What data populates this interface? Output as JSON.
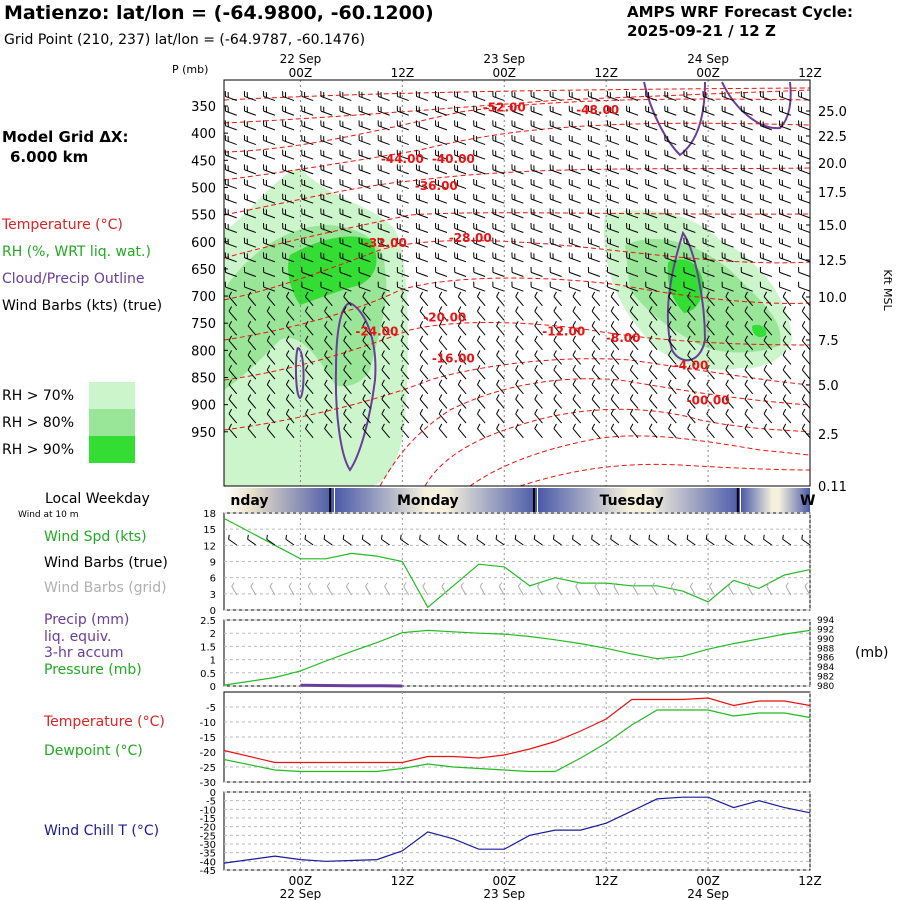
{
  "header": {
    "title": "Matienzo:  lat/lon = (-64.9800, -60.1200)",
    "subtitle": "Grid Point (210, 237) lat/lon = (-64.9787, -60.1476)",
    "cycle_line1": "AMPS WRF Forecast Cycle:",
    "cycle_line2": "2025-09-21 / 12  Z"
  },
  "left": {
    "grid_line1": "Model Grid ΔX:",
    "grid_line2": "6.000 km",
    "legend": [
      {
        "text": "Temperature (°C)",
        "color": "#dd2222"
      },
      {
        "text": "RH (%, WRT liq. wat.)",
        "color": "#22aa22"
      },
      {
        "text": "Cloud/Precip Outline",
        "color": "#6a3d9a"
      },
      {
        "text": "Wind Barbs (kts) (true)",
        "color": "#000000"
      }
    ],
    "rh_legend": [
      {
        "text": "RH > 70%",
        "color": "#ccf5cc"
      },
      {
        "text": "RH > 80%",
        "color": "#99e699"
      },
      {
        "text": "RH > 90%",
        "color": "#33dd33"
      }
    ]
  },
  "colors": {
    "temperature": "#ee1111",
    "dewpoint": "#22bb22",
    "rh_70": "#ccf5cc",
    "rh_80": "#99e699",
    "rh_90": "#33dd33",
    "cloud_outline": "#6a3d9a",
    "wind_speed": "#22bb22",
    "precip": "#6a3d9a",
    "pressure": "#22bb22",
    "wind_chill": "#1a1aa0",
    "weekday_band": "#4a5aa8"
  },
  "time_axis": {
    "ticks_top": [
      {
        "hour": 0,
        "label": "00Z",
        "date": "22 Sep"
      },
      {
        "hour": 12,
        "label": "12Z",
        "date": ""
      },
      {
        "hour": 24,
        "label": "00Z",
        "date": "23 Sep"
      },
      {
        "hour": 36,
        "label": "12Z",
        "date": ""
      },
      {
        "hour": 48,
        "label": "00Z",
        "date": "24 Sep"
      },
      {
        "hour": 60,
        "label": "12Z",
        "date": ""
      }
    ],
    "ticks_bottom": [
      {
        "hour": 0,
        "label": "00Z",
        "date": "22 Sep"
      },
      {
        "hour": 12,
        "label": "12Z",
        "date": ""
      },
      {
        "hour": 24,
        "label": "00Z",
        "date": "23 Sep"
      },
      {
        "hour": 36,
        "label": "12Z",
        "date": ""
      },
      {
        "hour": 48,
        "label": "00Z",
        "date": "24 Sep"
      },
      {
        "hour": 60,
        "label": "12Z",
        "date": ""
      }
    ]
  },
  "weekday_band": {
    "label": "Local Weekday",
    "sublabel": "Wind at 10 m",
    "days": [
      {
        "name": "nday",
        "center_hour": -6
      },
      {
        "name": "Monday",
        "center_hour": 15
      },
      {
        "name": "Tuesday",
        "center_hour": 39
      },
      {
        "name": "W",
        "center_hour": 61.5
      }
    ],
    "divider_hours": [
      3.5,
      27.5,
      51.5
    ]
  },
  "chart_data": [
    {
      "type": "heatmap",
      "name": "Vertical cross-section",
      "ylabel_left": "P (mb)",
      "ylabel_right": "Kft MSL",
      "x_range_hours": [
        -9,
        60
      ],
      "y_pressure_ticks": [
        350,
        400,
        450,
        500,
        550,
        600,
        650,
        700,
        750,
        800,
        850,
        900,
        950
      ],
      "y_height_ticks": [
        "25.0",
        "22.5",
        "20.0",
        "17.5",
        "15.0",
        "12.5",
        "10.0",
        "7.5",
        "5.0",
        "2.5",
        "0.11"
      ],
      "temperature_labels": [
        {
          "text": "-52.00",
          "hour": 24,
          "p": 360
        },
        {
          "text": "-48.00",
          "hour": 35,
          "p": 365
        },
        {
          "text": "-44.00",
          "hour": 12,
          "p": 455
        },
        {
          "text": "-40.00",
          "hour": 18,
          "p": 455
        },
        {
          "text": "-36.00",
          "hour": 16,
          "p": 505
        },
        {
          "text": "-32.00",
          "hour": 10,
          "p": 610
        },
        {
          "text": "-28.00",
          "hour": 20,
          "p": 600
        },
        {
          "text": "-24.00",
          "hour": 9,
          "p": 773
        },
        {
          "text": "-20.00",
          "hour": 17,
          "p": 747
        },
        {
          "text": "-16.00",
          "hour": 18,
          "p": 822
        },
        {
          "text": "-12.00",
          "hour": 31,
          "p": 773
        },
        {
          "text": "-8.00",
          "hour": 38,
          "p": 785
        },
        {
          "text": "-4.00",
          "hour": 46,
          "p": 835
        },
        {
          "text": "-00.00",
          "hour": 48,
          "p": 900
        }
      ],
      "rh_legend": [
        "RH > 70%",
        "RH > 80%",
        "RH > 90%"
      ]
    },
    {
      "type": "line",
      "name": "Wind speed",
      "ylabel": "Wind Spd (kts)",
      "ylim": [
        0,
        18
      ],
      "yticks": [
        0,
        3,
        6,
        9,
        12,
        15,
        18
      ],
      "series": [
        {
          "name": "Wind Spd (kts)",
          "x": [
            -9,
            -3,
            0,
            3,
            6,
            9,
            12,
            15,
            18,
            21,
            24,
            27,
            30,
            33,
            36,
            39,
            42,
            45,
            48,
            51,
            54,
            57,
            60
          ],
          "values": [
            17,
            12,
            9.5,
            9.5,
            10.5,
            10,
            9,
            0.5,
            4.5,
            8.5,
            8,
            4.5,
            6,
            5,
            5,
            4.5,
            4.5,
            3.5,
            1.5,
            5.5,
            4,
            6.5,
            7.5
          ]
        }
      ]
    },
    {
      "type": "line",
      "name": "Precip and pressure",
      "ylabel": "Precip (mm)",
      "ylim": [
        0,
        2.5
      ],
      "yticks": [
        0.0,
        0.5,
        1.0,
        1.5,
        2.0,
        2.5
      ],
      "y2lim": [
        980,
        994
      ],
      "y2ticks": [
        980,
        982,
        984,
        986,
        988,
        990,
        992,
        994
      ],
      "series": [
        {
          "name": "Pressure (mb)",
          "axis": "y2",
          "x": [
            -9,
            -3,
            0,
            3,
            6,
            9,
            12,
            15,
            18,
            21,
            24,
            27,
            30,
            33,
            36,
            39,
            42,
            45,
            48,
            51,
            54,
            57,
            60
          ],
          "values": [
            980.2,
            981.8,
            983.2,
            985.3,
            987.3,
            989.2,
            991.3,
            991.8,
            991.5,
            991.2,
            991.0,
            990.5,
            989.8,
            989.0,
            988.0,
            986.8,
            985.8,
            986.3,
            987.8,
            989.0,
            990.0,
            991.0,
            991.8
          ]
        },
        {
          "name": "Precip (mm)",
          "axis": "y",
          "x": [
            0,
            3,
            6,
            9,
            12
          ],
          "values": [
            0.03,
            0.02,
            0.01,
            0.01,
            0.0
          ]
        }
      ]
    },
    {
      "type": "line",
      "name": "Temperature and dewpoint",
      "ylim": [
        -30,
        0
      ],
      "yticks": [
        -5,
        -10,
        -15,
        -20,
        -25,
        -30
      ],
      "series": [
        {
          "name": "Temperature (°C)",
          "x": [
            -9,
            -3,
            0,
            3,
            6,
            9,
            12,
            15,
            18,
            21,
            24,
            27,
            30,
            33,
            36,
            39,
            42,
            45,
            48,
            51,
            54,
            57,
            60
          ],
          "values": [
            -19.5,
            -23.5,
            -23.5,
            -23.5,
            -23.5,
            -23.5,
            -23.5,
            -21.5,
            -21.5,
            -22,
            -21,
            -19,
            -16.5,
            -13,
            -9,
            -2.5,
            -2.5,
            -2.5,
            -2,
            -4.5,
            -3,
            -3,
            -4.5
          ]
        },
        {
          "name": "Dewpoint (°C)",
          "x": [
            -9,
            -3,
            0,
            3,
            6,
            9,
            12,
            15,
            18,
            21,
            24,
            27,
            30,
            33,
            36,
            39,
            42,
            45,
            48,
            51,
            54,
            57,
            60
          ],
          "values": [
            -22.5,
            -26,
            -26.5,
            -26.5,
            -26.5,
            -26.5,
            -25.5,
            -24,
            -25,
            -25.5,
            -26,
            -26.5,
            -26.5,
            -22,
            -17,
            -11,
            -6,
            -6,
            -6,
            -8,
            -7,
            -7,
            -8.5
          ]
        }
      ]
    },
    {
      "type": "line",
      "name": "Wind chill",
      "ylabel": "Wind Chill T (°C)",
      "ylim": [
        -45,
        0
      ],
      "yticks": [
        0,
        -5,
        -10,
        -15,
        -20,
        -25,
        -30,
        -35,
        -40,
        -45
      ],
      "series": [
        {
          "name": "Wind Chill T (°C)",
          "x": [
            -9,
            -3,
            0,
            3,
            6,
            9,
            12,
            15,
            18,
            21,
            24,
            27,
            30,
            33,
            36,
            39,
            42,
            45,
            48,
            51,
            54,
            57,
            60
          ],
          "values": [
            -41,
            -37,
            -39,
            -40,
            -39.5,
            -39,
            -34,
            -23,
            -27,
            -33,
            -33,
            -25,
            -22,
            -22,
            -18,
            -11,
            -4,
            -3,
            -3,
            -9,
            -5,
            -9,
            -12
          ]
        }
      ]
    }
  ],
  "panel_labels": {
    "wind": [
      {
        "text": "Wind Spd (kts)",
        "color": "#22aa22"
      },
      {
        "text": "Wind Barbs (true)",
        "color": "#000000"
      },
      {
        "text": "Wind Barbs (grid)",
        "color": "#b0b0b0"
      }
    ],
    "precip": [
      {
        "text": "Precip (mm)",
        "color": "#6a3d9a"
      },
      {
        "text": "liq. equiv.",
        "color": "#6a3d9a"
      },
      {
        "text": "3-hr accum",
        "color": "#6a3d9a"
      },
      {
        "text": "Pressure (mb)",
        "color": "#22aa22"
      }
    ],
    "pressure_unit": "(mb)",
    "temp": [
      {
        "text": "Temperature (°C)",
        "color": "#dd2222"
      },
      {
        "text": "Dewpoint (°C)",
        "color": "#22aa22"
      }
    ],
    "chill": [
      {
        "text": "Wind Chill T (°C)",
        "color": "#1a1aa0"
      }
    ]
  }
}
